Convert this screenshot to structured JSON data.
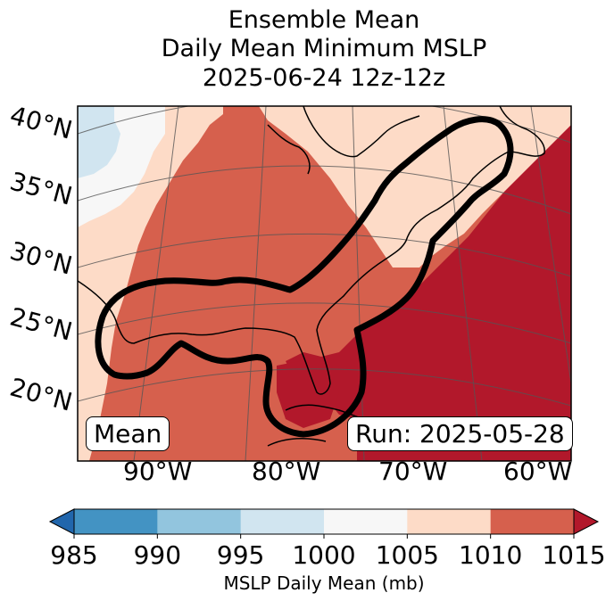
{
  "title": {
    "line1": "Ensemble Mean",
    "line2": "Daily Mean Minimum MSLP",
    "line3": "2025-06-24 12z-12z"
  },
  "map": {
    "lat_labels": [
      "40°N",
      "35°N",
      "30°N",
      "25°N",
      "20°N"
    ],
    "lon_labels": [
      "90°W",
      "80°W",
      "70°W",
      "60°W"
    ],
    "mean_label": "Mean",
    "run_label": "Run: 2025-05-28",
    "contour": "black outline of ensemble probability region",
    "field_colors": {
      "995-1000": "#d1e5f0",
      "1000-1005": "#f7f7f7",
      "1005-1010": "#fddbc7",
      "1010-1015": "#d6604d",
      "1015+": "#b2182b"
    }
  },
  "colorbar": {
    "ticks": [
      "985",
      "990",
      "995",
      "1000",
      "1005",
      "1010",
      "1015"
    ],
    "colors": [
      "#2166ac",
      "#4393c3",
      "#92c5de",
      "#d1e5f0",
      "#f7f7f7",
      "#fddbc7",
      "#d6604d",
      "#b2182b"
    ],
    "label": "MSLP Daily Mean (mb)"
  }
}
